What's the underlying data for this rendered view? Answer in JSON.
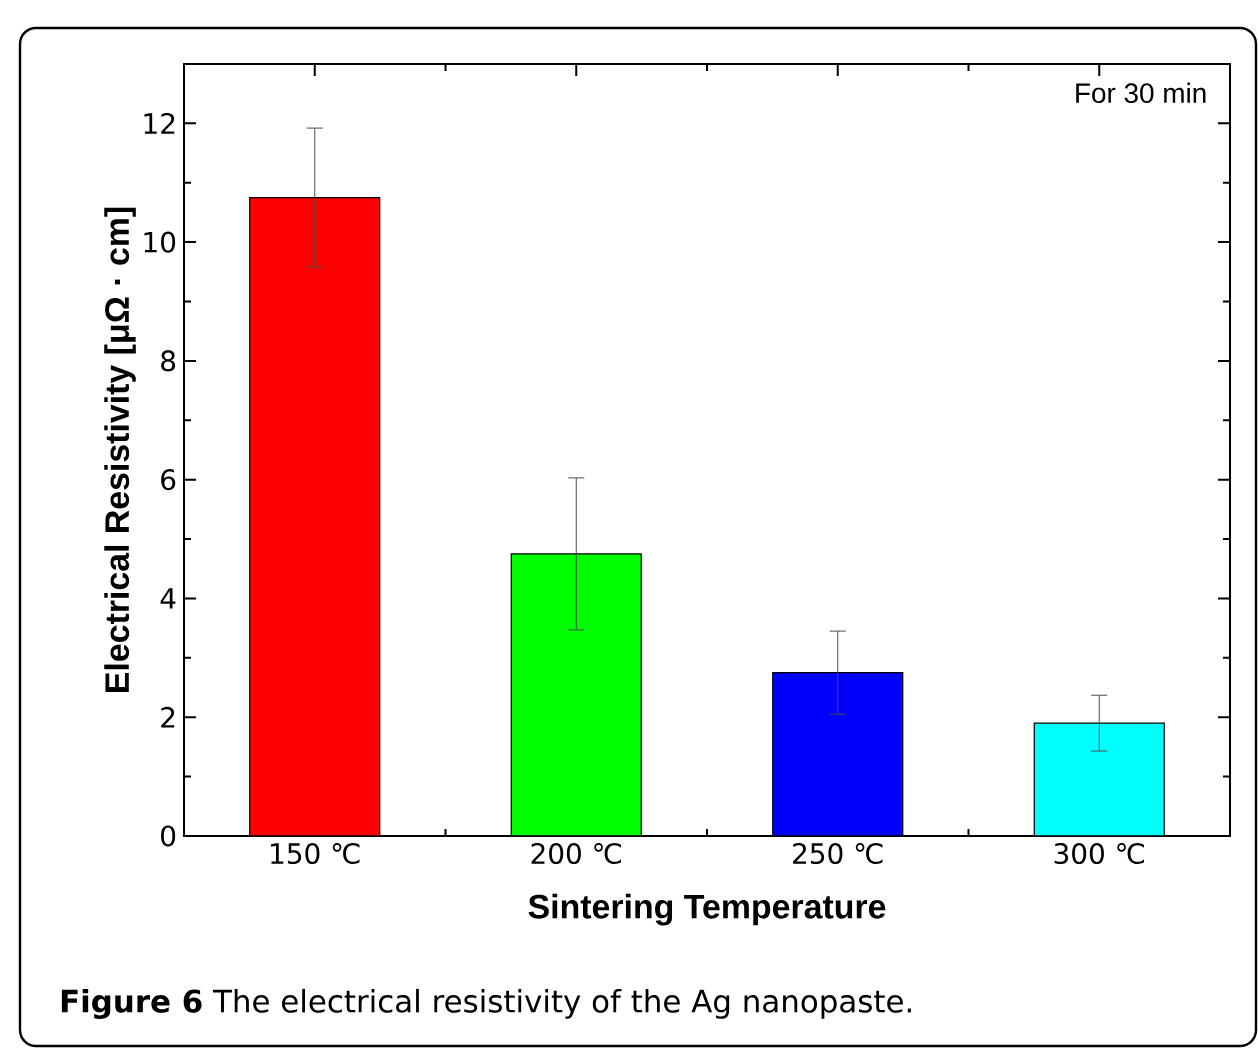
{
  "chart_data": {
    "type": "bar",
    "ylabel": "Electrical Resistivity [μΩ · cm]",
    "xlabel": "Sintering Temperature",
    "categories": [
      "150 ℃",
      "200 ℃",
      "250 ℃",
      "300 ℃"
    ],
    "values": [
      10.75,
      4.75,
      2.75,
      1.9
    ],
    "errors": [
      1.17,
      1.28,
      0.7,
      0.47
    ],
    "colors": [
      "#ff0000",
      "#00ff00",
      "#0000ff",
      "#00ffff"
    ],
    "ylim": [
      0,
      13
    ],
    "yticks": [
      0,
      2,
      4,
      6,
      8,
      10,
      12
    ],
    "grid": false,
    "annotations": [
      "For 30 min",
      "**Figure 6** The electrical resistivity of the Ag nanopaste."
    ]
  }
}
